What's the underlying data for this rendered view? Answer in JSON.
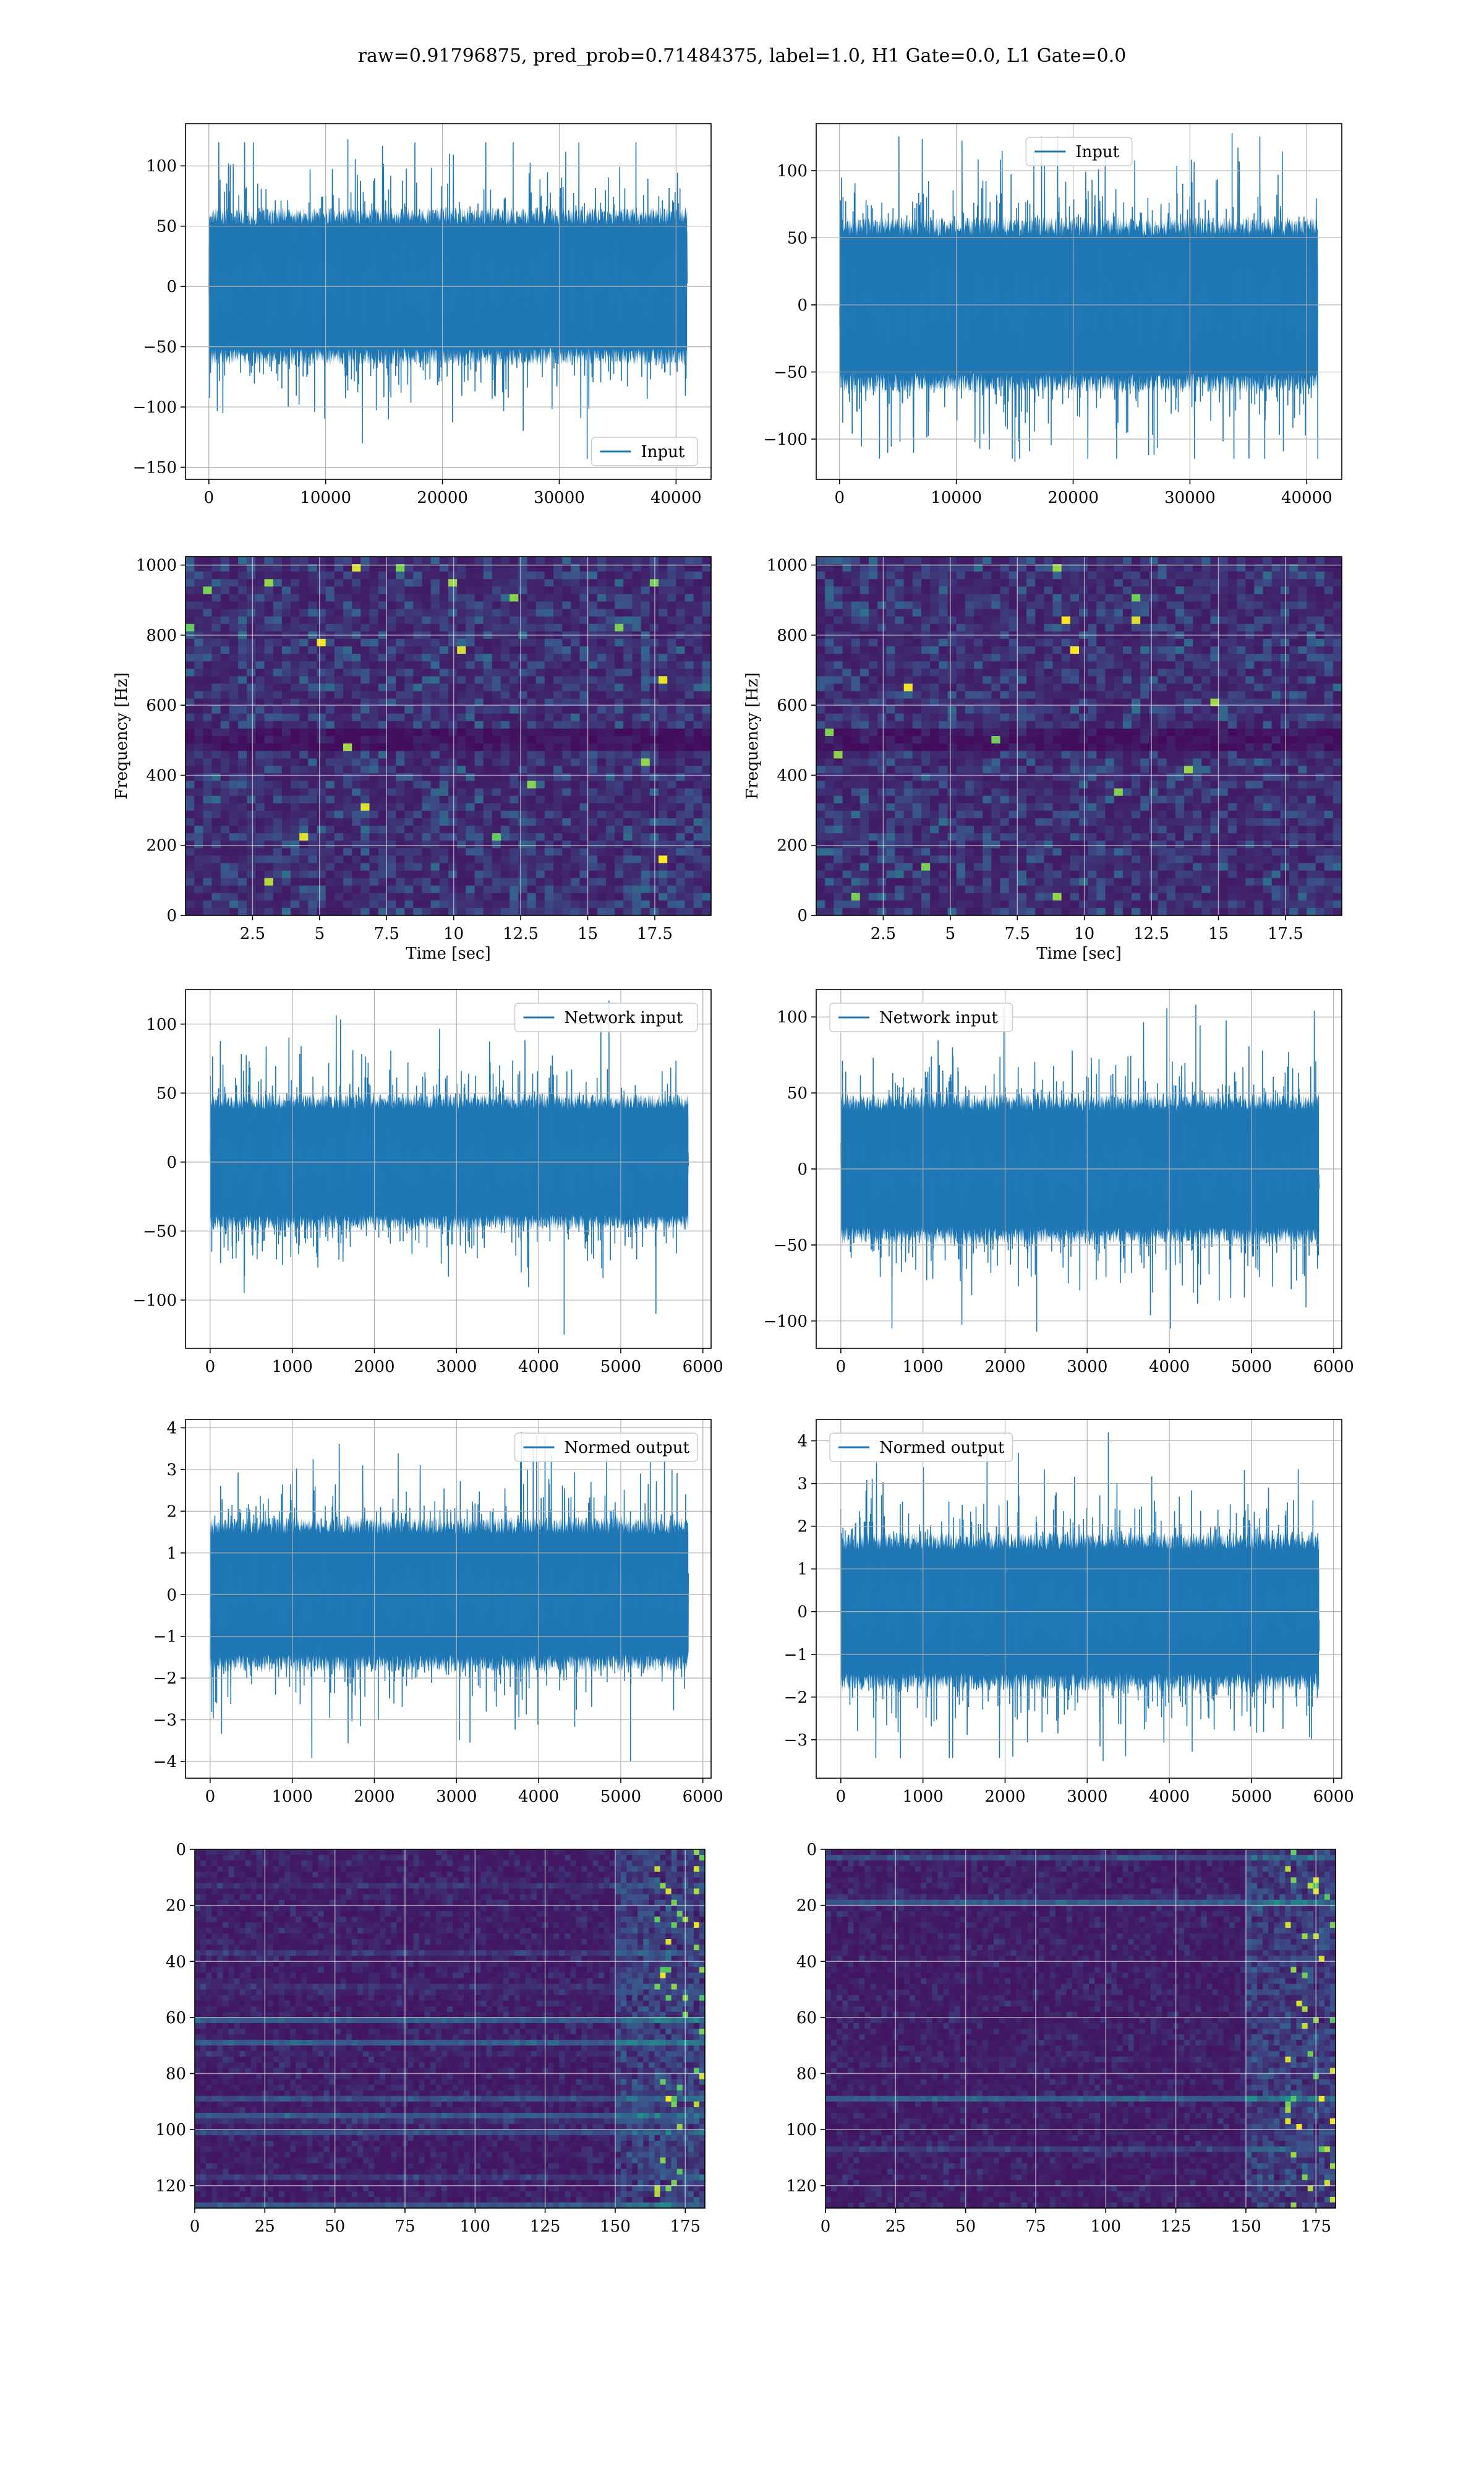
{
  "figure": {
    "suptitle": "raw=0.91796875, pred_prob=0.71484375, label=1.0, H1 Gate=0.0, L1 Gate=0.0",
    "colors": {
      "line": "#1f77b4",
      "grid": "#b0b0b0",
      "axis": "#000000",
      "viridis_dark": "#440154",
      "viridis_mid": "#31688e",
      "viridis_light": "#35b779",
      "viridis_bright": "#fde725"
    }
  },
  "chart_data": [
    {
      "id": "p1",
      "type": "line",
      "series": [
        {
          "name": "Input"
        }
      ],
      "legend": "lower right",
      "xlim": [
        -2000,
        43000
      ],
      "ylim": [
        -160,
        135
      ],
      "xticks": [
        0,
        10000,
        20000,
        30000,
        40000
      ],
      "yticks": [
        -150,
        -100,
        -50,
        0,
        50,
        100
      ],
      "n_points": 40960,
      "envelope": {
        "core": 60,
        "peak_max": 122,
        "peak_min": -143
      },
      "grid": true
    },
    {
      "id": "p2",
      "type": "line",
      "series": [
        {
          "name": "Input"
        }
      ],
      "legend": "upper center",
      "xlim": [
        -2000,
        43000
      ],
      "ylim": [
        -130,
        135
      ],
      "xticks": [
        0,
        10000,
        20000,
        30000,
        40000
      ],
      "yticks": [
        -100,
        -50,
        0,
        50,
        100
      ],
      "n_points": 40960,
      "envelope": {
        "core": 60,
        "peak_max": 128,
        "peak_min": -117
      },
      "grid": true
    },
    {
      "id": "p3",
      "type": "heatmap",
      "colormap": "viridis",
      "xlabel": "Time [sec]",
      "ylabel": "Frequency [Hz]",
      "xlim": [
        0,
        19.6
      ],
      "ylim": [
        0,
        1024
      ],
      "xticks": [
        2.5,
        5.0,
        7.5,
        10.0,
        12.5,
        15.0,
        17.5
      ],
      "yticks": [
        0,
        200,
        400,
        600,
        800,
        1000
      ],
      "grid": true
    },
    {
      "id": "p4",
      "type": "heatmap",
      "colormap": "viridis",
      "xlabel": "Time [sec]",
      "ylabel": "Frequency [Hz]",
      "xlim": [
        0,
        19.6
      ],
      "ylim": [
        0,
        1024
      ],
      "xticks": [
        2.5,
        5.0,
        7.5,
        10.0,
        12.5,
        15.0,
        17.5
      ],
      "yticks": [
        0,
        200,
        400,
        600,
        800,
        1000
      ],
      "grid": true
    },
    {
      "id": "p5",
      "type": "line",
      "series": [
        {
          "name": "Network input"
        }
      ],
      "legend": "upper right",
      "xlim": [
        -300,
        6100
      ],
      "ylim": [
        -135,
        125
      ],
      "xticks": [
        0,
        1000,
        2000,
        3000,
        4000,
        5000,
        6000
      ],
      "yticks": [
        -100,
        -50,
        0,
        50,
        100
      ],
      "n_points": 5825,
      "envelope": {
        "core": 45,
        "peak_max": 117,
        "peak_min": -125
      },
      "grid": true
    },
    {
      "id": "p6",
      "type": "line",
      "series": [
        {
          "name": "Network input"
        }
      ],
      "legend": "upper left",
      "xlim": [
        -300,
        6100
      ],
      "ylim": [
        -118,
        118
      ],
      "xticks": [
        0,
        1000,
        2000,
        3000,
        4000,
        5000,
        6000
      ],
      "yticks": [
        -100,
        -50,
        0,
        50,
        100
      ],
      "n_points": 5825,
      "envelope": {
        "core": 45,
        "peak_max": 108,
        "peak_min": -107
      },
      "grid": true
    },
    {
      "id": "p7",
      "type": "line",
      "series": [
        {
          "name": "Normed output"
        }
      ],
      "legend": "upper right",
      "xlim": [
        -300,
        6100
      ],
      "ylim": [
        -4.4,
        4.2
      ],
      "xticks": [
        0,
        1000,
        2000,
        3000,
        4000,
        5000,
        6000
      ],
      "yticks": [
        -4,
        -3,
        -2,
        -1,
        0,
        1,
        2,
        3,
        4
      ],
      "n_points": 5825,
      "envelope": {
        "core": 1.7,
        "peak_max": 3.9,
        "peak_min": -4.0
      },
      "grid": true
    },
    {
      "id": "p8",
      "type": "line",
      "series": [
        {
          "name": "Normed output"
        }
      ],
      "legend": "upper left",
      "xlim": [
        -300,
        6100
      ],
      "ylim": [
        -3.9,
        4.5
      ],
      "xticks": [
        0,
        1000,
        2000,
        3000,
        4000,
        5000,
        6000
      ],
      "yticks": [
        -3,
        -2,
        -1,
        0,
        1,
        2,
        3,
        4
      ],
      "n_points": 5825,
      "envelope": {
        "core": 1.7,
        "peak_max": 4.2,
        "peak_min": -3.5
      },
      "grid": true
    },
    {
      "id": "p9",
      "type": "heatmap",
      "colormap": "viridis",
      "xlim": [
        0,
        182
      ],
      "ylim": [
        128,
        0
      ],
      "xticks": [
        0,
        25,
        50,
        75,
        100,
        125,
        150,
        175
      ],
      "yticks": [
        0,
        20,
        40,
        60,
        80,
        100,
        120
      ],
      "grid": true
    },
    {
      "id": "p10",
      "type": "heatmap",
      "colormap": "viridis",
      "xlim": [
        0,
        182
      ],
      "ylim": [
        128,
        0
      ],
      "xticks": [
        0,
        25,
        50,
        75,
        100,
        125,
        150,
        175
      ],
      "yticks": [
        0,
        20,
        40,
        60,
        80,
        100,
        120
      ],
      "grid": true
    }
  ]
}
